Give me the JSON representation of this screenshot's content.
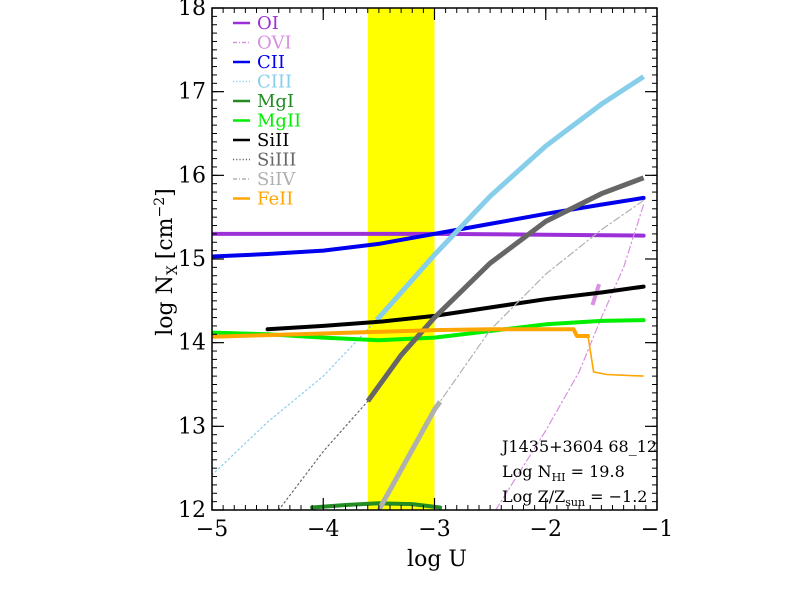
{
  "chart_data": {
    "type": "line",
    "xlabel": "log U",
    "ylabel_main": "log N",
    "ylabel_sub": "X",
    "ylabel_unit_pre": "[cm",
    "ylabel_unit_sup": "−2",
    "ylabel_unit_post": "]",
    "xlim": [
      -5,
      -1
    ],
    "ylim": [
      12,
      18
    ],
    "x_ticks": [
      {
        "value": -5,
        "label": "−5"
      },
      {
        "value": -4,
        "label": "−4"
      },
      {
        "value": -3,
        "label": "−3"
      },
      {
        "value": -2,
        "label": "−2"
      },
      {
        "value": -1,
        "label": "−1"
      }
    ],
    "y_ticks": [
      {
        "value": 12,
        "label": "12"
      },
      {
        "value": 13,
        "label": "13"
      },
      {
        "value": 14,
        "label": "14"
      },
      {
        "value": 15,
        "label": "15"
      },
      {
        "value": 16,
        "label": "16"
      },
      {
        "value": 17,
        "label": "17"
      },
      {
        "value": 18,
        "label": "18"
      }
    ],
    "band": {
      "x0": -3.6,
      "x1": -3.0,
      "color": "#ffff00"
    },
    "annotations": {
      "line1": "J1435+3604 68_12",
      "line2_pre": "Log N",
      "line2_sub": "HI",
      "line2_post": " = 19.8",
      "line3_pre": "Log Z/Z",
      "line3_sub": "sun",
      "line3_post": " = −1.2"
    },
    "series": [
      {
        "name": "OI",
        "color": "#9b30d9",
        "style": "solid",
        "width": 4,
        "points": [
          [
            -5,
            15.3
          ],
          [
            -4,
            15.3
          ],
          [
            -3,
            15.3
          ],
          [
            -2,
            15.29
          ],
          [
            -1.12,
            15.28
          ]
        ]
      },
      {
        "name": "OVI",
        "color": "#d890e0",
        "style": "dashdot",
        "width": 1.2,
        "points": [
          [
            -2.45,
            12.0
          ],
          [
            -2.0,
            12.95
          ],
          [
            -1.7,
            13.65
          ],
          [
            -1.5,
            14.3
          ],
          [
            -1.3,
            14.9
          ],
          [
            -1.12,
            15.65
          ]
        ],
        "thick_segment": [
          [
            -1.58,
            14.45
          ],
          [
            -1.52,
            14.7
          ]
        ]
      },
      {
        "name": "CII",
        "color": "#0000ee",
        "style": "solid",
        "width": 4,
        "points": [
          [
            -5,
            15.03
          ],
          [
            -4.5,
            15.06
          ],
          [
            -4,
            15.1
          ],
          [
            -3.5,
            15.18
          ],
          [
            -3,
            15.3
          ],
          [
            -2.5,
            15.42
          ],
          [
            -2,
            15.54
          ],
          [
            -1.5,
            15.65
          ],
          [
            -1.12,
            15.73
          ]
        ]
      },
      {
        "name": "CIII",
        "color": "#87ceeb",
        "style": "dotted",
        "width": 1.2,
        "points": [
          [
            -5,
            12.42
          ],
          [
            -4.5,
            13.05
          ],
          [
            -4,
            13.6
          ],
          [
            -3.5,
            14.3
          ],
          [
            -3,
            15.05
          ],
          [
            -2.5,
            15.75
          ],
          [
            -2,
            16.35
          ],
          [
            -1.5,
            16.85
          ],
          [
            -1.12,
            17.18
          ]
        ],
        "thick_from": -3.52
      },
      {
        "name": "MgI",
        "color": "#228b22",
        "style": "solid",
        "width": 4,
        "points": [
          [
            -4.1,
            12.03
          ],
          [
            -3.8,
            12.06
          ],
          [
            -3.5,
            12.08
          ],
          [
            -3.2,
            12.07
          ],
          [
            -2.95,
            12.03
          ]
        ]
      },
      {
        "name": "MgII",
        "color": "#00ee00",
        "style": "solid",
        "width": 4,
        "points": [
          [
            -5,
            14.12
          ],
          [
            -4.5,
            14.1
          ],
          [
            -4,
            14.06
          ],
          [
            -3.5,
            14.03
          ],
          [
            -3,
            14.06
          ],
          [
            -2.5,
            14.14
          ],
          [
            -2,
            14.22
          ],
          [
            -1.5,
            14.26
          ],
          [
            -1.12,
            14.27
          ]
        ]
      },
      {
        "name": "SiII",
        "color": "#000000",
        "style": "solid",
        "width": 4,
        "points": [
          [
            -4.5,
            14.16
          ],
          [
            -4,
            14.2
          ],
          [
            -3.5,
            14.25
          ],
          [
            -3,
            14.32
          ],
          [
            -2.5,
            14.42
          ],
          [
            -2,
            14.52
          ],
          [
            -1.5,
            14.6
          ],
          [
            -1.12,
            14.67
          ]
        ]
      },
      {
        "name": "SiIII",
        "color": "#666666",
        "style": "dotted",
        "width": 1.2,
        "points": [
          [
            -4.4,
            12.0
          ],
          [
            -4,
            12.7
          ],
          [
            -3.6,
            13.3
          ],
          [
            -3.3,
            13.85
          ],
          [
            -3,
            14.3
          ],
          [
            -2.5,
            14.95
          ],
          [
            -2,
            15.45
          ],
          [
            -1.5,
            15.78
          ],
          [
            -1.12,
            15.97
          ]
        ],
        "thick_from": -3.6
      },
      {
        "name": "SiIV",
        "color": "#b0b0b0",
        "style": "dashdot",
        "width": 1.2,
        "points": [
          [
            -3.5,
            12.0
          ],
          [
            -3.0,
            13.2
          ],
          [
            -2.5,
            14.15
          ],
          [
            -2.0,
            14.82
          ],
          [
            -1.5,
            15.35
          ],
          [
            -1.12,
            15.7
          ]
        ],
        "thick_range": [
          -3.5,
          -2.95
        ]
      },
      {
        "name": "FeII",
        "color": "#ffa500",
        "style": "solid",
        "width": 4,
        "points": [
          [
            -5,
            14.07
          ],
          [
            -4.5,
            14.09
          ],
          [
            -4,
            14.11
          ],
          [
            -3.5,
            14.13
          ],
          [
            -3,
            14.15
          ],
          [
            -2.5,
            14.16
          ],
          [
            -2,
            14.16
          ],
          [
            -1.75,
            14.16
          ],
          [
            -1.72,
            14.08
          ],
          [
            -1.62,
            14.08
          ]
        ],
        "tail": [
          [
            -1.62,
            14.08
          ],
          [
            -1.57,
            13.65
          ],
          [
            -1.45,
            13.62
          ],
          [
            -1.12,
            13.6
          ]
        ]
      }
    ]
  }
}
